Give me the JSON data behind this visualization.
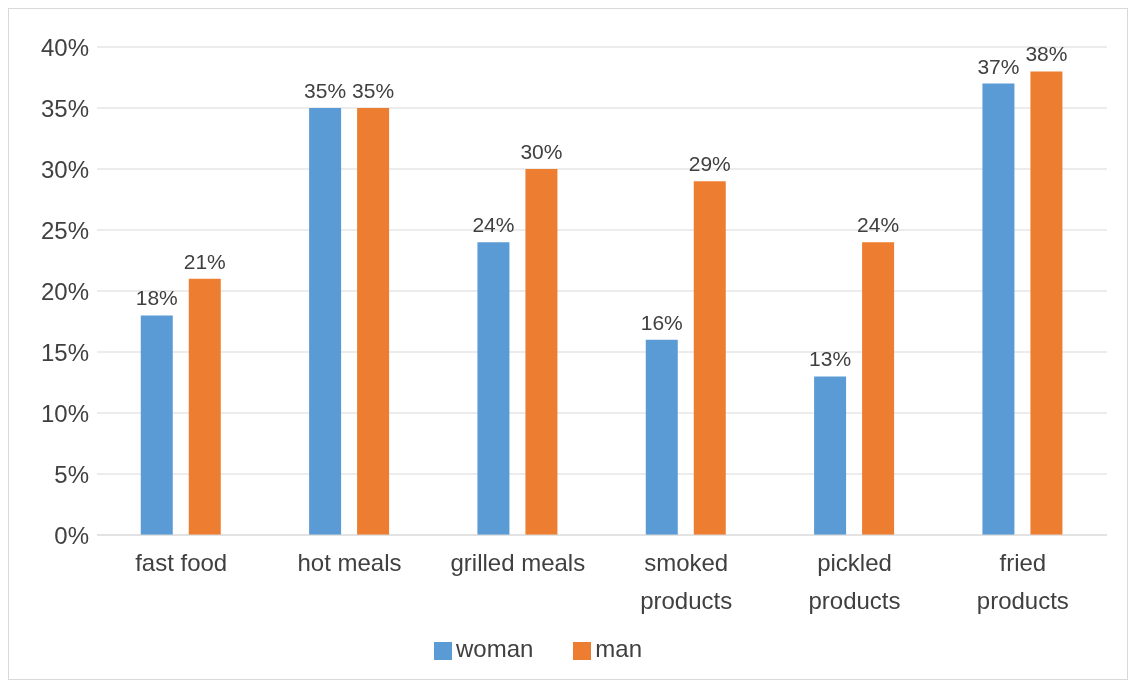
{
  "chart_data": {
    "type": "bar",
    "categories": [
      "fast food",
      "hot meals",
      "grilled meals",
      "smoked products",
      "pickled products",
      "fried products"
    ],
    "series": [
      {
        "name": "woman",
        "color": "#5b9bd5",
        "values": [
          18,
          35,
          24,
          16,
          13,
          37
        ],
        "value_labels": [
          "18%",
          "35%",
          "24%",
          "16%",
          "13%",
          "37%"
        ]
      },
      {
        "name": "man",
        "color": "#ed7d31",
        "values": [
          21,
          35,
          30,
          29,
          24,
          38
        ],
        "value_labels": [
          "21%",
          "35%",
          "30%",
          "29%",
          "24%",
          "38%"
        ]
      }
    ],
    "ylim": [
      0,
      40
    ],
    "yticks": [
      {
        "value": 0,
        "label": "0%"
      },
      {
        "value": 5,
        "label": "5%"
      },
      {
        "value": 10,
        "label": "10%"
      },
      {
        "value": 15,
        "label": "15%"
      },
      {
        "value": 20,
        "label": "20%"
      },
      {
        "value": 25,
        "label": "25%"
      },
      {
        "value": 30,
        "label": "30%"
      },
      {
        "value": 35,
        "label": "35%"
      },
      {
        "value": 40,
        "label": "40%"
      }
    ],
    "grid": "y",
    "legend": "bottom"
  }
}
